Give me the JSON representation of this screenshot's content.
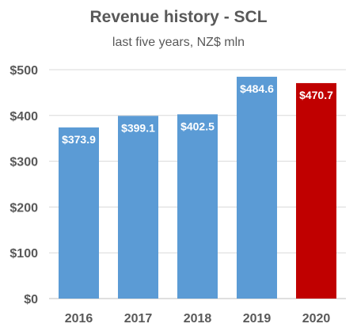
{
  "chart_data": {
    "type": "bar",
    "title": "Revenue history - SCL",
    "subtitle": "last five years, NZ$ mln",
    "xlabel": "",
    "ylabel": "",
    "categories": [
      "2016",
      "2017",
      "2018",
      "2019",
      "2020"
    ],
    "values": [
      373.9,
      399.1,
      402.5,
      484.6,
      470.7
    ],
    "data_labels": [
      "$373.9",
      "$399.1",
      "$402.5",
      "$484.6",
      "$470.7"
    ],
    "bar_colors": [
      "#5b9bd5",
      "#5b9bd5",
      "#5b9bd5",
      "#5b9bd5",
      "#c00000"
    ],
    "ylim": [
      0,
      500
    ],
    "y_ticks": [
      0,
      100,
      200,
      300,
      400,
      500
    ],
    "y_tick_labels": [
      "$0",
      "$100",
      "$200",
      "$300",
      "$400",
      "$500"
    ],
    "grid": true,
    "legend": "none"
  }
}
